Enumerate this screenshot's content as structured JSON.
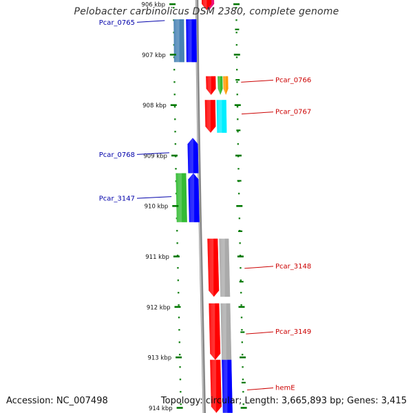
{
  "title": "Pelobacter carbinolicus DSM 2380, complete genome",
  "footer": {
    "accession": "Accession: NC_007498",
    "summary": "Topology: circular; Length: 3,665,893 bp; Genes: 3,415"
  },
  "scale": {
    "ticks": [
      {
        "kbp": 906,
        "label": "906 kbp"
      },
      {
        "kbp": 907,
        "label": "907 kbp"
      },
      {
        "kbp": 908,
        "label": "908 kbp"
      },
      {
        "kbp": 909,
        "label": "909 kbp"
      },
      {
        "kbp": 910,
        "label": "910 kbp"
      },
      {
        "kbp": 911,
        "label": "911 kbp"
      },
      {
        "kbp": 912,
        "label": "912 kbp"
      },
      {
        "kbp": 913,
        "label": "913 kbp"
      },
      {
        "kbp": 914,
        "label": "914 kbp"
      }
    ]
  },
  "genes": [
    {
      "id": "pink-top",
      "track": "forward-inner",
      "start": 905.88,
      "end": 906.12,
      "color": "#ee1177",
      "arrow": "down"
    },
    {
      "id": "red-top",
      "track": "forward-outer-left",
      "start": 905.88,
      "end": 906.12,
      "color": "#ff0000",
      "arrow": "down"
    },
    {
      "id": "Pcar_0765-steel",
      "track": "reverse-outer",
      "start": 906.3,
      "end": 907.15,
      "color": "#4682b4",
      "arrow": "none"
    },
    {
      "id": "Pcar_0765",
      "track": "reverse-inner",
      "start": 906.3,
      "end": 907.15,
      "color": "#0000ff",
      "arrow": "none"
    },
    {
      "id": "Pcar_0766-red",
      "track": "forward-inner",
      "start": 907.43,
      "end": 907.8,
      "color": "#ff0000",
      "arrow": "down"
    },
    {
      "id": "Pcar_0766-green",
      "track": "forward-mid",
      "start": 907.43,
      "end": 907.8,
      "color": "#33bb33",
      "arrow": "down"
    },
    {
      "id": "Pcar_0766-orange",
      "track": "forward-outer",
      "start": 907.43,
      "end": 907.8,
      "color": "#ff9900",
      "arrow": "down"
    },
    {
      "id": "Pcar_0767",
      "track": "forward-inner",
      "start": 907.9,
      "end": 908.55,
      "color": "#ff0000",
      "arrow": "down"
    },
    {
      "id": "Pcar_0767-cyan",
      "track": "forward-outer",
      "start": 907.9,
      "end": 908.55,
      "color": "#00eeff",
      "arrow": "none"
    },
    {
      "id": "Pcar_0768",
      "track": "reverse-inner",
      "start": 908.65,
      "end": 909.35,
      "color": "#0000ff",
      "arrow": "up"
    },
    {
      "id": "Pcar_3147",
      "track": "reverse-inner",
      "start": 909.35,
      "end": 910.32,
      "color": "#0000ff",
      "arrow": "up"
    },
    {
      "id": "Pcar_3147-green",
      "track": "reverse-outer",
      "start": 909.35,
      "end": 910.32,
      "color": "#33bb33",
      "arrow": "none"
    },
    {
      "id": "Pcar_3148",
      "track": "forward-inner",
      "start": 910.65,
      "end": 911.8,
      "color": "#ff0000",
      "arrow": "down"
    },
    {
      "id": "Pcar_3148-gray",
      "track": "forward-outer",
      "start": 910.65,
      "end": 911.8,
      "color": "#aaaaaa",
      "arrow": "none"
    },
    {
      "id": "Pcar_3149",
      "track": "forward-inner",
      "start": 911.93,
      "end": 913.05,
      "color": "#ff0000",
      "arrow": "down"
    },
    {
      "id": "Pcar_3149-gray",
      "track": "forward-outer",
      "start": 911.93,
      "end": 913.05,
      "color": "#aaaaaa",
      "arrow": "none"
    },
    {
      "id": "hemE",
      "track": "forward-inner",
      "start": 913.05,
      "end": 914.1,
      "color": "#ff0000",
      "arrow": "down"
    },
    {
      "id": "hemE-blue",
      "track": "forward-outer",
      "start": 913.05,
      "end": 914.1,
      "color": "#0000ff",
      "arrow": "none"
    }
  ],
  "labels": [
    {
      "text": "Pcar_0765",
      "side": "left",
      "color": "#0000aa",
      "kbp": 906.38
    },
    {
      "text": "Pcar_0766",
      "side": "right",
      "color": "#cc0000",
      "kbp": 907.52
    },
    {
      "text": "Pcar_0767",
      "side": "right",
      "color": "#cc0000",
      "kbp": 908.15
    },
    {
      "text": "Pcar_0768",
      "side": "left",
      "color": "#0000aa",
      "kbp": 909.0
    },
    {
      "text": "Pcar_3147",
      "side": "left",
      "color": "#0000aa",
      "kbp": 909.87
    },
    {
      "text": "Pcar_3148",
      "side": "right",
      "color": "#cc0000",
      "kbp": 911.21
    },
    {
      "text": "Pcar_3149",
      "side": "right",
      "color": "#cc0000",
      "kbp": 912.51
    },
    {
      "text": "hemE",
      "side": "right",
      "color": "#cc0000",
      "kbp": 913.62
    }
  ],
  "colors": {
    "backbone": "#888888",
    "tick": "#007700",
    "dotted": "#228822"
  }
}
